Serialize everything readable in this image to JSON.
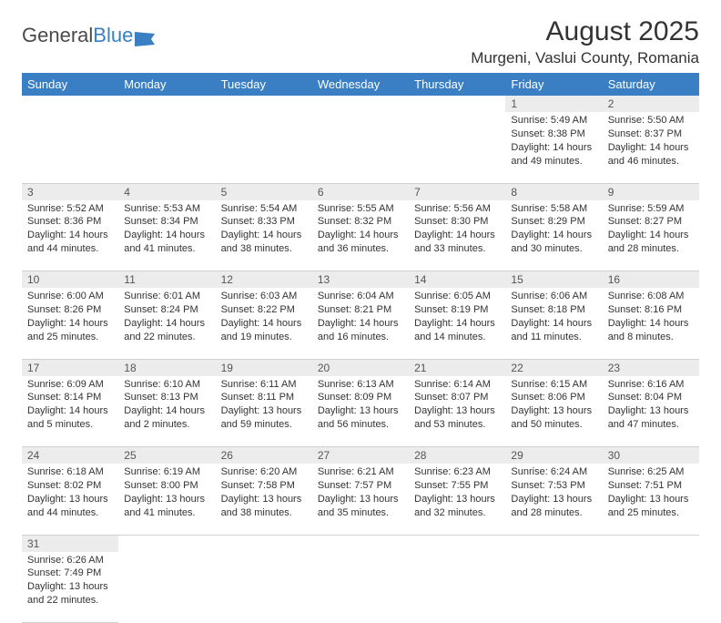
{
  "logo": {
    "text1": "General",
    "text2": "Blue"
  },
  "title": "August 2025",
  "subtitle": "Murgeni, Vaslui County, Romania",
  "day_headers": [
    "Sunday",
    "Monday",
    "Tuesday",
    "Wednesday",
    "Thursday",
    "Friday",
    "Saturday"
  ],
  "colors": {
    "header_bg": "#3a7fc4",
    "header_text": "#ffffff",
    "daynum_bg": "#ececec",
    "cell_border": "#d0d0d0",
    "text": "#333333"
  },
  "weeks": [
    [
      null,
      null,
      null,
      null,
      null,
      {
        "n": "1",
        "sunrise": "Sunrise: 5:49 AM",
        "sunset": "Sunset: 8:38 PM",
        "daylight": "Daylight: 14 hours and 49 minutes."
      },
      {
        "n": "2",
        "sunrise": "Sunrise: 5:50 AM",
        "sunset": "Sunset: 8:37 PM",
        "daylight": "Daylight: 14 hours and 46 minutes."
      }
    ],
    [
      {
        "n": "3",
        "sunrise": "Sunrise: 5:52 AM",
        "sunset": "Sunset: 8:36 PM",
        "daylight": "Daylight: 14 hours and 44 minutes."
      },
      {
        "n": "4",
        "sunrise": "Sunrise: 5:53 AM",
        "sunset": "Sunset: 8:34 PM",
        "daylight": "Daylight: 14 hours and 41 minutes."
      },
      {
        "n": "5",
        "sunrise": "Sunrise: 5:54 AM",
        "sunset": "Sunset: 8:33 PM",
        "daylight": "Daylight: 14 hours and 38 minutes."
      },
      {
        "n": "6",
        "sunrise": "Sunrise: 5:55 AM",
        "sunset": "Sunset: 8:32 PM",
        "daylight": "Daylight: 14 hours and 36 minutes."
      },
      {
        "n": "7",
        "sunrise": "Sunrise: 5:56 AM",
        "sunset": "Sunset: 8:30 PM",
        "daylight": "Daylight: 14 hours and 33 minutes."
      },
      {
        "n": "8",
        "sunrise": "Sunrise: 5:58 AM",
        "sunset": "Sunset: 8:29 PM",
        "daylight": "Daylight: 14 hours and 30 minutes."
      },
      {
        "n": "9",
        "sunrise": "Sunrise: 5:59 AM",
        "sunset": "Sunset: 8:27 PM",
        "daylight": "Daylight: 14 hours and 28 minutes."
      }
    ],
    [
      {
        "n": "10",
        "sunrise": "Sunrise: 6:00 AM",
        "sunset": "Sunset: 8:26 PM",
        "daylight": "Daylight: 14 hours and 25 minutes."
      },
      {
        "n": "11",
        "sunrise": "Sunrise: 6:01 AM",
        "sunset": "Sunset: 8:24 PM",
        "daylight": "Daylight: 14 hours and 22 minutes."
      },
      {
        "n": "12",
        "sunrise": "Sunrise: 6:03 AM",
        "sunset": "Sunset: 8:22 PM",
        "daylight": "Daylight: 14 hours and 19 minutes."
      },
      {
        "n": "13",
        "sunrise": "Sunrise: 6:04 AM",
        "sunset": "Sunset: 8:21 PM",
        "daylight": "Daylight: 14 hours and 16 minutes."
      },
      {
        "n": "14",
        "sunrise": "Sunrise: 6:05 AM",
        "sunset": "Sunset: 8:19 PM",
        "daylight": "Daylight: 14 hours and 14 minutes."
      },
      {
        "n": "15",
        "sunrise": "Sunrise: 6:06 AM",
        "sunset": "Sunset: 8:18 PM",
        "daylight": "Daylight: 14 hours and 11 minutes."
      },
      {
        "n": "16",
        "sunrise": "Sunrise: 6:08 AM",
        "sunset": "Sunset: 8:16 PM",
        "daylight": "Daylight: 14 hours and 8 minutes."
      }
    ],
    [
      {
        "n": "17",
        "sunrise": "Sunrise: 6:09 AM",
        "sunset": "Sunset: 8:14 PM",
        "daylight": "Daylight: 14 hours and 5 minutes."
      },
      {
        "n": "18",
        "sunrise": "Sunrise: 6:10 AM",
        "sunset": "Sunset: 8:13 PM",
        "daylight": "Daylight: 14 hours and 2 minutes."
      },
      {
        "n": "19",
        "sunrise": "Sunrise: 6:11 AM",
        "sunset": "Sunset: 8:11 PM",
        "daylight": "Daylight: 13 hours and 59 minutes."
      },
      {
        "n": "20",
        "sunrise": "Sunrise: 6:13 AM",
        "sunset": "Sunset: 8:09 PM",
        "daylight": "Daylight: 13 hours and 56 minutes."
      },
      {
        "n": "21",
        "sunrise": "Sunrise: 6:14 AM",
        "sunset": "Sunset: 8:07 PM",
        "daylight": "Daylight: 13 hours and 53 minutes."
      },
      {
        "n": "22",
        "sunrise": "Sunrise: 6:15 AM",
        "sunset": "Sunset: 8:06 PM",
        "daylight": "Daylight: 13 hours and 50 minutes."
      },
      {
        "n": "23",
        "sunrise": "Sunrise: 6:16 AM",
        "sunset": "Sunset: 8:04 PM",
        "daylight": "Daylight: 13 hours and 47 minutes."
      }
    ],
    [
      {
        "n": "24",
        "sunrise": "Sunrise: 6:18 AM",
        "sunset": "Sunset: 8:02 PM",
        "daylight": "Daylight: 13 hours and 44 minutes."
      },
      {
        "n": "25",
        "sunrise": "Sunrise: 6:19 AM",
        "sunset": "Sunset: 8:00 PM",
        "daylight": "Daylight: 13 hours and 41 minutes."
      },
      {
        "n": "26",
        "sunrise": "Sunrise: 6:20 AM",
        "sunset": "Sunset: 7:58 PM",
        "daylight": "Daylight: 13 hours and 38 minutes."
      },
      {
        "n": "27",
        "sunrise": "Sunrise: 6:21 AM",
        "sunset": "Sunset: 7:57 PM",
        "daylight": "Daylight: 13 hours and 35 minutes."
      },
      {
        "n": "28",
        "sunrise": "Sunrise: 6:23 AM",
        "sunset": "Sunset: 7:55 PM",
        "daylight": "Daylight: 13 hours and 32 minutes."
      },
      {
        "n": "29",
        "sunrise": "Sunrise: 6:24 AM",
        "sunset": "Sunset: 7:53 PM",
        "daylight": "Daylight: 13 hours and 28 minutes."
      },
      {
        "n": "30",
        "sunrise": "Sunrise: 6:25 AM",
        "sunset": "Sunset: 7:51 PM",
        "daylight": "Daylight: 13 hours and 25 minutes."
      }
    ],
    [
      {
        "n": "31",
        "sunrise": "Sunrise: 6:26 AM",
        "sunset": "Sunset: 7:49 PM",
        "daylight": "Daylight: 13 hours and 22 minutes."
      },
      null,
      null,
      null,
      null,
      null,
      null
    ]
  ]
}
